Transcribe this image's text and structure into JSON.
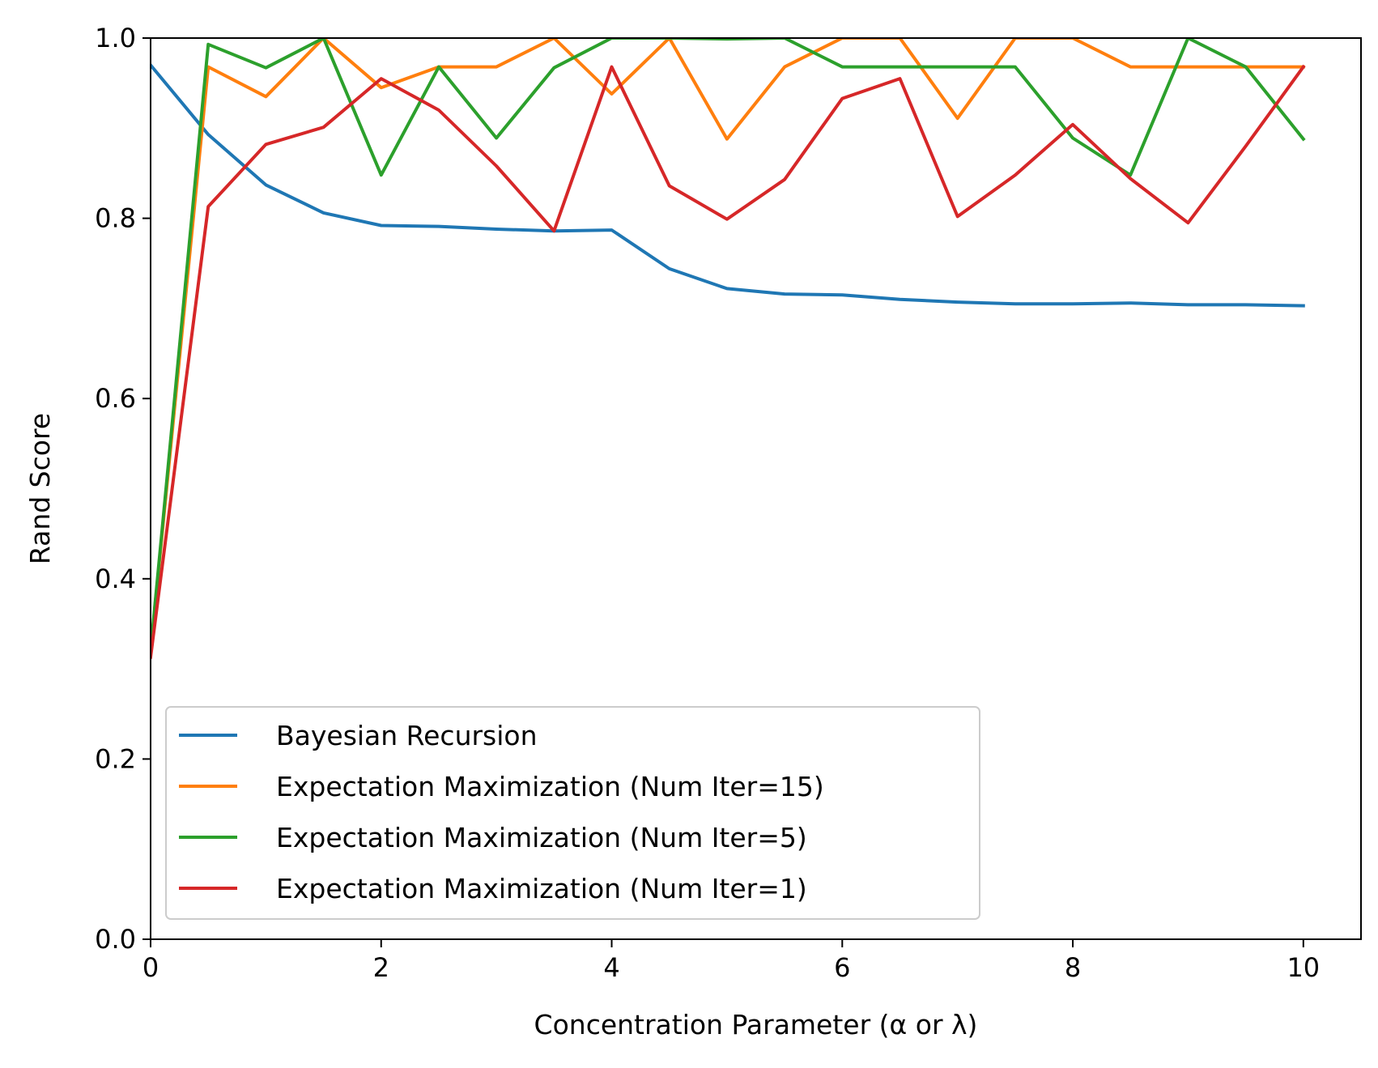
{
  "chart_data": {
    "type": "line",
    "title": "",
    "xlabel": "Concentration Parameter (α or λ)",
    "ylabel": "Rand Score",
    "xlim": [
      0,
      10.5
    ],
    "ylim": [
      0,
      1.0
    ],
    "xticks": [
      0,
      2,
      4,
      6,
      8,
      10
    ],
    "xtick_labels": [
      "0",
      "2",
      "4",
      "6",
      "8",
      "10"
    ],
    "yticks": [
      0.0,
      0.2,
      0.4,
      0.6,
      0.8,
      1.0
    ],
    "ytick_labels": [
      "0.0",
      "0.2",
      "0.4",
      "0.6",
      "0.8",
      "1.0"
    ],
    "grid": false,
    "legend_position": "lower-left",
    "x": [
      0,
      0.5,
      1,
      1.5,
      2,
      2.5,
      3,
      3.5,
      4,
      4.5,
      5,
      5.5,
      6,
      6.5,
      7,
      7.5,
      8,
      8.5,
      9,
      9.5,
      10
    ],
    "series": [
      {
        "name": "Bayesian Recursion",
        "color": "#1f77b4",
        "values": [
          0.97,
          0.893,
          0.837,
          0.806,
          0.792,
          0.791,
          0.788,
          0.786,
          0.787,
          0.744,
          0.722,
          0.716,
          0.715,
          0.71,
          0.707,
          0.705,
          0.705,
          0.706,
          0.704,
          0.704,
          0.703
        ]
      },
      {
        "name": "Expectation Maximization (Num Iter=15)",
        "color": "#ff7f0e",
        "values": [
          0.32,
          0.968,
          0.935,
          1.0,
          0.945,
          0.968,
          0.968,
          1.0,
          0.938,
          1.0,
          0.888,
          0.968,
          1.0,
          1.0,
          0.911,
          1.0,
          1.0,
          0.968,
          0.968,
          0.968,
          0.968
        ]
      },
      {
        "name": "Expectation Maximization (Num Iter=5)",
        "color": "#2ca02c",
        "values": [
          0.32,
          0.993,
          0.967,
          1.0,
          0.848,
          0.968,
          0.889,
          0.967,
          1.0,
          1.0,
          0.999,
          1.0,
          0.968,
          0.968,
          0.968,
          0.968,
          0.889,
          0.848,
          1.0,
          0.968,
          0.888
        ]
      },
      {
        "name": "Expectation Maximization (Num Iter=1)",
        "color": "#d62728",
        "values": [
          0.313,
          0.813,
          0.882,
          0.901,
          0.955,
          0.92,
          0.858,
          0.786,
          0.968,
          0.836,
          0.799,
          0.843,
          0.933,
          0.955,
          0.802,
          0.848,
          0.904,
          0.844,
          0.795,
          0.88,
          0.968
        ]
      }
    ]
  }
}
